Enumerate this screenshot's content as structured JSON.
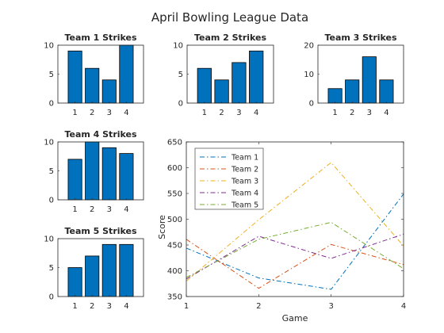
{
  "figure_title": "April Bowling League Data",
  "colors": {
    "bar": "#0072BD",
    "axes": "#262626",
    "team1": "#0072BD",
    "team2": "#D95319",
    "team3": "#EDB120",
    "team4": "#7E2F8E",
    "team5": "#77AC30"
  },
  "chart_data": [
    {
      "type": "bar",
      "title": "Team 1 Strikes",
      "categories": [
        "1",
        "2",
        "3",
        "4"
      ],
      "values": [
        9,
        6,
        4,
        10
      ],
      "ylim": [
        0,
        10
      ],
      "yticks": [
        0,
        5,
        10
      ]
    },
    {
      "type": "bar",
      "title": "Team 2 Strikes",
      "categories": [
        "1",
        "2",
        "3",
        "4"
      ],
      "values": [
        6,
        4,
        7,
        9
      ],
      "ylim": [
        0,
        10
      ],
      "yticks": [
        0,
        5,
        10
      ]
    },
    {
      "type": "bar",
      "title": "Team 3 Strikes",
      "categories": [
        "1",
        "2",
        "3",
        "4"
      ],
      "values": [
        5,
        8,
        16,
        8
      ],
      "ylim": [
        0,
        20
      ],
      "yticks": [
        0,
        10,
        20
      ]
    },
    {
      "type": "bar",
      "title": "Team 4 Strikes",
      "categories": [
        "1",
        "2",
        "3",
        "4"
      ],
      "values": [
        7,
        10,
        9,
        8
      ],
      "ylim": [
        0,
        10
      ],
      "yticks": [
        0,
        5,
        10
      ]
    },
    {
      "type": "bar",
      "title": "Team 5 Strikes",
      "categories": [
        "1",
        "2",
        "3",
        "4"
      ],
      "values": [
        5,
        7,
        9,
        9
      ],
      "ylim": [
        0,
        10
      ],
      "yticks": [
        0,
        5,
        10
      ]
    },
    {
      "type": "line",
      "title": "",
      "xlabel": "Game",
      "ylabel": "Score",
      "x": [
        1,
        2,
        3,
        4
      ],
      "xlim": [
        1,
        4
      ],
      "xticks": [
        1,
        2,
        3,
        4
      ],
      "ylim": [
        350,
        650
      ],
      "yticks": [
        350,
        400,
        450,
        500,
        550,
        600,
        650
      ],
      "line_style": "dash-dot",
      "legend_position": "top-left",
      "series": [
        {
          "name": "Team 1",
          "values": [
            444,
            386,
            364,
            549
          ]
        },
        {
          "name": "Team 2",
          "values": [
            461,
            366,
            451,
            412
          ]
        },
        {
          "name": "Team 3",
          "values": [
            380,
            499,
            610,
            448
          ]
        },
        {
          "name": "Team 4",
          "values": [
            384,
            467,
            424,
            471
          ]
        },
        {
          "name": "Team 5",
          "values": [
            387,
            461,
            494,
            404
          ]
        }
      ]
    }
  ]
}
